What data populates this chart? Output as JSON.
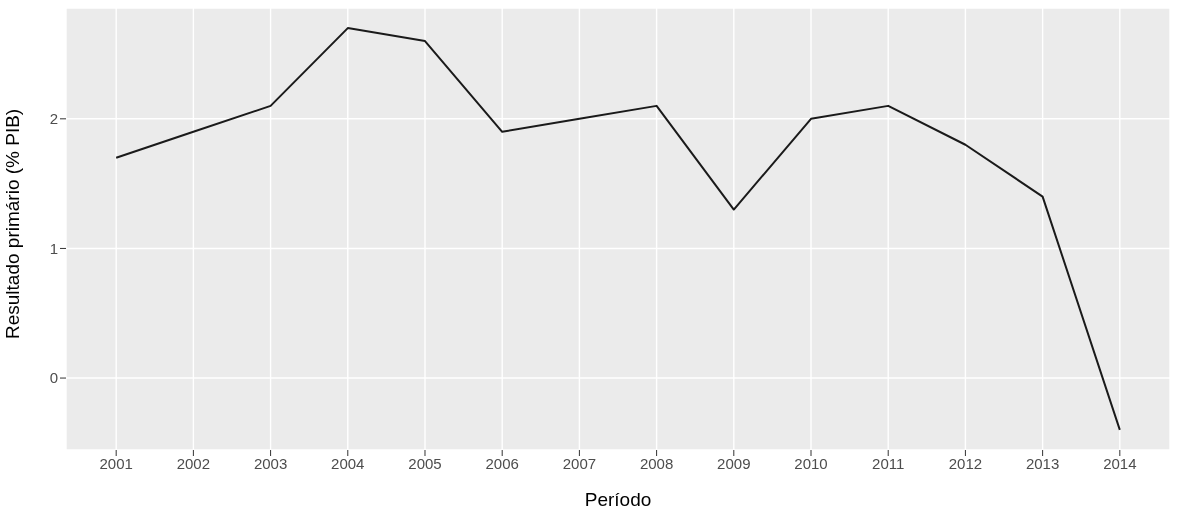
{
  "chart_data": {
    "type": "line",
    "xlabel": "Período",
    "ylabel": "Resultado primário (% PIB)",
    "x": [
      2001,
      2002,
      2003,
      2004,
      2005,
      2006,
      2007,
      2008,
      2009,
      2010,
      2011,
      2012,
      2013,
      2014
    ],
    "series": [
      {
        "color": "#1a1a1a",
        "values": [
          1.7,
          1.9,
          2.1,
          2.7,
          2.6,
          1.9,
          2.0,
          2.1,
          1.3,
          2.0,
          2.1,
          1.8,
          1.4,
          -0.4
        ]
      }
    ],
    "xlim": [
      2000.35,
      2014.65
    ],
    "xticks": [
      2001,
      2002,
      2003,
      2004,
      2005,
      2006,
      2007,
      2008,
      2009,
      2010,
      2011,
      2012,
      2013,
      2014
    ],
    "ylim": [
      -0.555,
      2.855
    ],
    "yticks": [
      0,
      1,
      2
    ],
    "grid": true,
    "legend": false,
    "marker": "none",
    "line_style": "solid"
  }
}
